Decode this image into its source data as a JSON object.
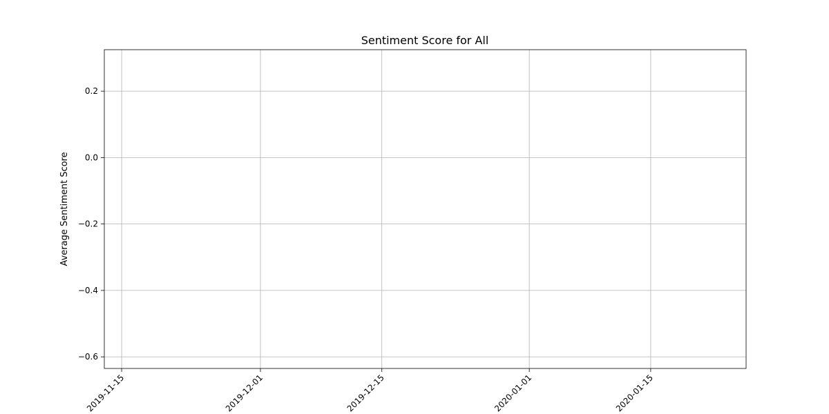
{
  "chart_data": {
    "type": "line",
    "title": "Sentiment Score for All",
    "xlabel": "",
    "ylabel": "Average Sentiment Score",
    "x_ticks": [
      "2019-11-15",
      "2019-12-01",
      "2019-12-15",
      "2020-01-01",
      "2020-01-15"
    ],
    "y_ticks": [
      0.2,
      0.0,
      -0.2,
      -0.4,
      -0.6
    ],
    "y_tick_labels": [
      "0.2",
      "0.0",
      "−0.2",
      "−0.4",
      "−0.6"
    ],
    "xlim": [
      "2019-11-13",
      "2020-01-26"
    ],
    "ylim": [
      -0.635,
      0.325
    ],
    "grid": true,
    "series": [
      {
        "values": []
      }
    ]
  }
}
